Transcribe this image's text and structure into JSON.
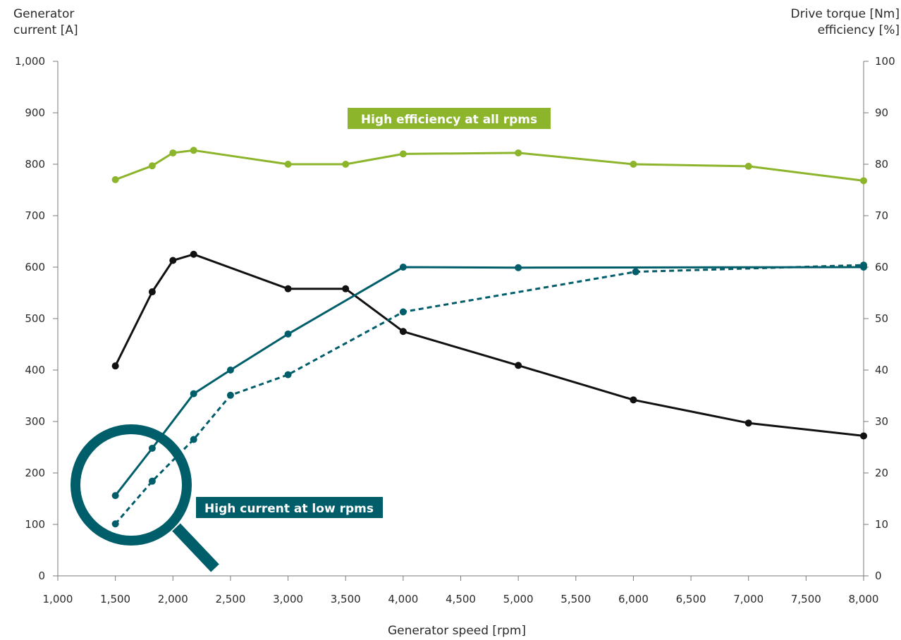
{
  "chart_data": {
    "type": "line",
    "xlabel": "Generator speed [rpm]",
    "ylabel_left": [
      "Generator",
      "current [A]"
    ],
    "ylabel_right": [
      "Drive torque [Nm]",
      "efficiency [%]"
    ],
    "xlim": [
      1000,
      8000
    ],
    "ylim_left": [
      0,
      1000
    ],
    "ylim_right": [
      0,
      100
    ],
    "x_ticks": [
      1000,
      1500,
      2000,
      2500,
      3000,
      3500,
      4000,
      4500,
      5000,
      5500,
      6000,
      6500,
      7000,
      7500,
      8000
    ],
    "x_tick_labels": [
      "1,000",
      "1,500",
      "2,000",
      "2,500",
      "3,000",
      "3,500",
      "4,000",
      "4,500",
      "5,000",
      "5,500",
      "6,000",
      "6,500",
      "7,000",
      "7,500",
      "8,000"
    ],
    "y_left_ticks": [
      0,
      100,
      200,
      300,
      400,
      500,
      600,
      700,
      800,
      900,
      1000
    ],
    "y_left_tick_labels": [
      "0",
      "100",
      "200",
      "300",
      "400",
      "500",
      "600",
      "700",
      "800",
      "900",
      "1,000"
    ],
    "y_right_ticks": [
      0,
      10,
      20,
      30,
      40,
      50,
      60,
      70,
      80,
      90,
      100
    ],
    "y_right_tick_labels": [
      "0",
      "10",
      "20",
      "30",
      "40",
      "50",
      "60",
      "70",
      "80",
      "90",
      "100"
    ],
    "grid": false,
    "series": [
      {
        "key": "efficiency",
        "axis": "right",
        "color": "#8cb52b",
        "style": "solid",
        "points": [
          [
            1500,
            77
          ],
          [
            1820,
            79.7
          ],
          [
            2000,
            82.2
          ],
          [
            2180,
            82.7
          ],
          [
            3000,
            80
          ],
          [
            3500,
            80
          ],
          [
            4000,
            82
          ],
          [
            5000,
            82.2
          ],
          [
            6000,
            80
          ],
          [
            7000,
            79.6
          ],
          [
            8000,
            76.8
          ]
        ]
      },
      {
        "key": "current",
        "axis": "left",
        "color": "#111111",
        "style": "solid",
        "points": [
          [
            1500,
            408
          ],
          [
            1820,
            552
          ],
          [
            2000,
            613
          ],
          [
            2180,
            625
          ],
          [
            3000,
            558
          ],
          [
            3500,
            558
          ],
          [
            4000,
            475
          ],
          [
            5000,
            409
          ],
          [
            6000,
            342
          ],
          [
            7000,
            297
          ],
          [
            8000,
            272
          ]
        ]
      },
      {
        "key": "torque_solid",
        "axis": "right",
        "color": "#005e6a",
        "style": "solid",
        "points": [
          [
            1500,
            15.6
          ],
          [
            1820,
            24.8
          ],
          [
            2180,
            35.4
          ],
          [
            2500,
            40
          ],
          [
            3000,
            47
          ],
          [
            4000,
            60
          ],
          [
            5000,
            59.9
          ],
          [
            8000,
            60
          ]
        ]
      },
      {
        "key": "torque_dashed",
        "axis": "right",
        "color": "#005e6a",
        "style": "dashed",
        "points": [
          [
            1500,
            10.1
          ],
          [
            1820,
            18.4
          ],
          [
            2180,
            26.5
          ],
          [
            2500,
            35.1
          ],
          [
            3000,
            39.1
          ],
          [
            4000,
            51.3
          ],
          [
            6020,
            59.1
          ],
          [
            8000,
            60.4
          ]
        ]
      }
    ],
    "annotations": [
      {
        "text": "High efficiency at all rpms",
        "bg": "#8cb52b",
        "color": "#ffffff"
      },
      {
        "text": "High current at low rpms",
        "bg": "#005e6a",
        "color": "#ffffff"
      }
    ],
    "magnifier_color": "#005e6a"
  }
}
